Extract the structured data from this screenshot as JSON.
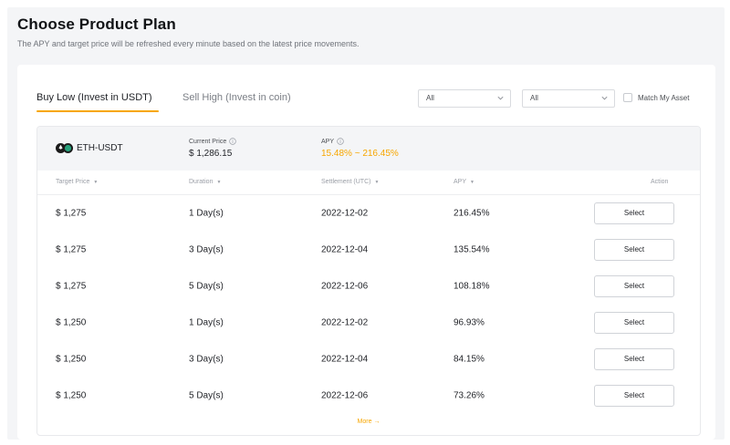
{
  "header": {
    "title": "Choose Product Plan",
    "subtitle": "The APY and target price will be refreshed every minute based on the latest price movements."
  },
  "tabs": [
    {
      "label": "Buy Low (Invest in USDT)",
      "active": true
    },
    {
      "label": "Sell High (Invest in coin)",
      "active": false
    }
  ],
  "filters": {
    "select_1": "All",
    "select_2": "All",
    "match_label": "Match My Asset",
    "match_checked": false
  },
  "pair": {
    "name": "ETH-USDT",
    "current_price_label": "Current Price",
    "current_price": "$ 1,286.15",
    "apy_label": "APY",
    "apy_range": "15.48% ~ 216.45%"
  },
  "table": {
    "headers": {
      "target_price": "Target Price",
      "duration": "Duration",
      "settlement": "Settlement (UTC)",
      "apy": "APY",
      "action": "Action"
    },
    "rows": [
      {
        "target_price": "$ 1,275",
        "duration": "1 Day(s)",
        "settlement": "2022-12-02",
        "apy": "216.45%",
        "action": "Select"
      },
      {
        "target_price": "$ 1,275",
        "duration": "3 Day(s)",
        "settlement": "2022-12-04",
        "apy": "135.54%",
        "action": "Select"
      },
      {
        "target_price": "$ 1,275",
        "duration": "5 Day(s)",
        "settlement": "2022-12-06",
        "apy": "108.18%",
        "action": "Select"
      },
      {
        "target_price": "$ 1,250",
        "duration": "1 Day(s)",
        "settlement": "2022-12-02",
        "apy": "96.93%",
        "action": "Select"
      },
      {
        "target_price": "$ 1,250",
        "duration": "3 Day(s)",
        "settlement": "2022-12-04",
        "apy": "84.15%",
        "action": "Select"
      },
      {
        "target_price": "$ 1,250",
        "duration": "5 Day(s)",
        "settlement": "2022-12-06",
        "apy": "73.26%",
        "action": "Select"
      }
    ],
    "more_label": "More",
    "more_arrow": "→"
  },
  "colors": {
    "accent": "#f7a600",
    "background": "#f4f5f7"
  },
  "icons": {
    "coin": "eth-usdt-pair-icon",
    "info": "info-circle-icon",
    "dropdown": "chevron-down-icon",
    "sort": "sort-caret-icon"
  }
}
